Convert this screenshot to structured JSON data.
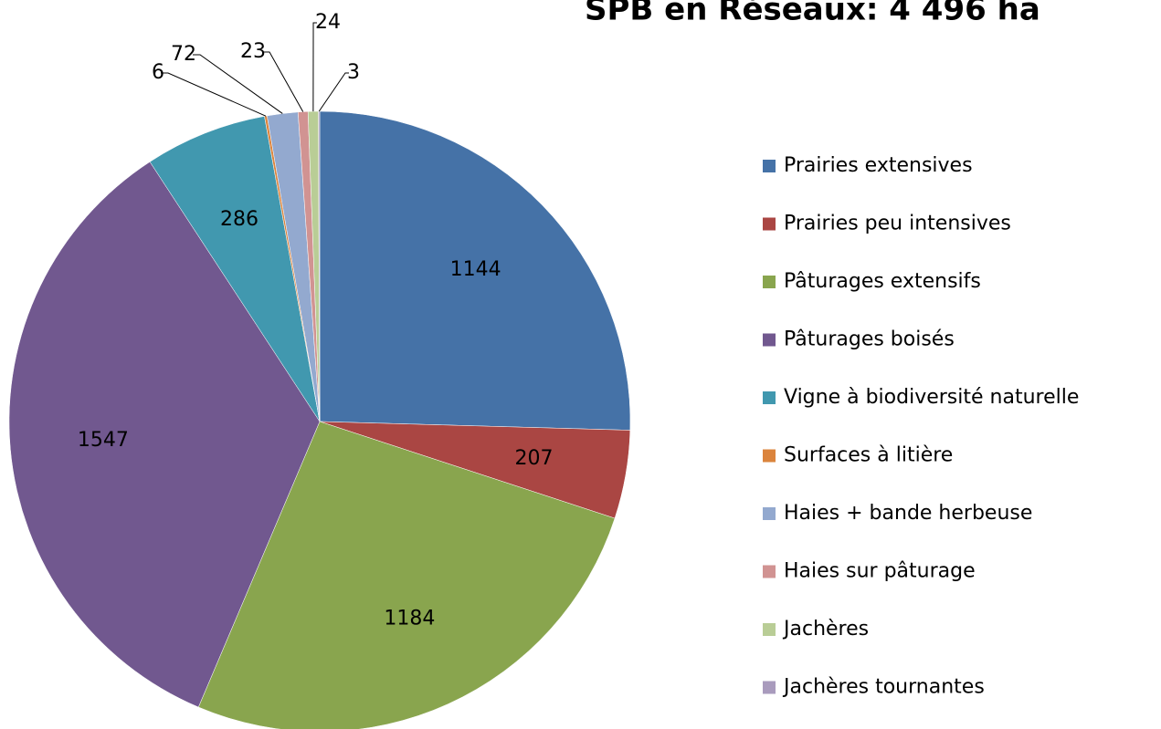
{
  "chart_data": {
    "type": "pie",
    "title": "SPB en Réseaux: 4 496 ha",
    "categories": [
      "Prairies extensives",
      "Prairies peu intensives",
      "Pâturages extensifs",
      "Pâturages boisés",
      "Vigne à biodiversité naturelle",
      "Surfaces à litière",
      "Haies + bande herbeuse",
      "Haies sur pâturage",
      "Jachères",
      "Jachères tournantes"
    ],
    "values": [
      1144,
      207,
      1184,
      1547,
      286,
      6,
      72,
      23,
      24,
      3
    ],
    "colors": [
      "#4572a7",
      "#aa4643",
      "#89a54e",
      "#71588f",
      "#4198af",
      "#db843d",
      "#93a9cf",
      "#d19392",
      "#b9cd96",
      "#a99bbd"
    ],
    "legend": "right"
  }
}
